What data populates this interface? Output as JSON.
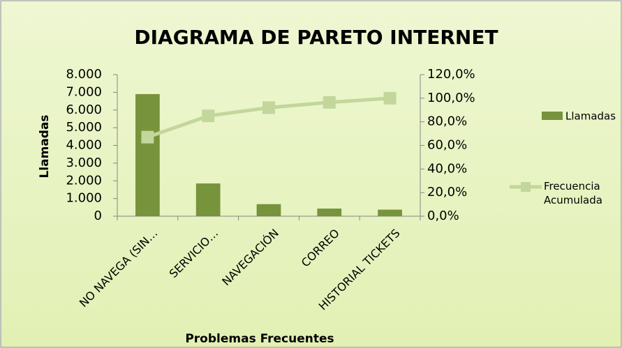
{
  "chart_data": {
    "type": "bar",
    "title": "DIAGRAMA DE PARETO INTERNET",
    "x_label": "Problemas Frecuentes",
    "y_label": "Llamadas",
    "categories": [
      "NO NAVEGA (SIN…",
      "SERVICIO…",
      "NAVEGACIÓN",
      "CORREO",
      "HISTORIAL TICKETS"
    ],
    "series": [
      {
        "name": "Llamadas",
        "type": "bar",
        "color": "#77933c",
        "values": [
          6900,
          1850,
          680,
          430,
          370
        ]
      },
      {
        "name": "Frecuencia Acumulada",
        "type": "line",
        "axis": "y2",
        "color": "#c3d69b",
        "values": [
          67,
          85,
          92,
          96.5,
          100
        ]
      }
    ],
    "ylim": [
      0,
      8000
    ],
    "yticks": [
      0,
      {
        "value": 1000,
        "label": "1.000"
      },
      {
        "value": 2000,
        "label": "2.000"
      },
      {
        "value": 3000,
        "label": "3.000"
      },
      {
        "value": 4000,
        "label": "4.000"
      },
      {
        "value": 5000,
        "label": "5.000"
      },
      {
        "value": 6000,
        "label": "6.000"
      },
      {
        "value": 7000,
        "label": "7.000"
      },
      {
        "value": 8000,
        "label": "8.000"
      }
    ],
    "y2lim": [
      0,
      120
    ],
    "y2ticks": [
      {
        "value": 0,
        "label": "0,0%"
      },
      {
        "value": 20,
        "label": "20,0%"
      },
      {
        "value": 40,
        "label": "40,0%"
      },
      {
        "value": 60,
        "label": "60,0%"
      },
      {
        "value": 80,
        "label": "80,0%"
      },
      {
        "value": 100,
        "label": "100,0%"
      },
      {
        "value": 120,
        "label": "120,0%"
      }
    ],
    "grid": false,
    "legend": "right"
  }
}
